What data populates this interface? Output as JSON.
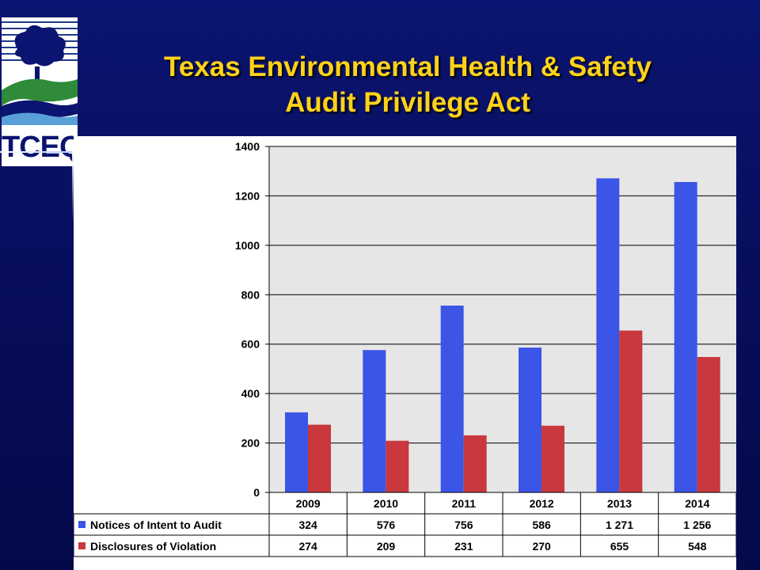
{
  "slide": {
    "title_line1": "Texas Environmental Health & Safety",
    "title_line2": "Audit Privilege Act",
    "logo_text": "TCEQ"
  },
  "colors": {
    "background": "#0b1470",
    "title": "#ffd21a",
    "series_1": "#3b55e6",
    "series_2": "#c8383c",
    "plot_area": "#e6e6e6"
  },
  "chart_data": {
    "type": "bar",
    "categories": [
      "2009",
      "2010",
      "2011",
      "2012",
      "2013",
      "2014"
    ],
    "series": [
      {
        "name": "Notices of Intent to Audit",
        "values": [
          324,
          576,
          756,
          586,
          1271,
          1256
        ],
        "labels": [
          "324",
          "576",
          "756",
          "586",
          "1 271",
          "1 256"
        ],
        "color": "#3b55e6"
      },
      {
        "name": "Disclosures of Violation",
        "values": [
          274,
          209,
          231,
          270,
          655,
          548
        ],
        "labels": [
          "274",
          "209",
          "231",
          "270",
          "655",
          "548"
        ],
        "color": "#c8383c"
      }
    ],
    "ylim": [
      0,
      1400
    ],
    "yticks": [
      "0",
      "200",
      "400",
      "600",
      "800",
      "1000",
      "1200",
      "1400"
    ],
    "legend": "data-table",
    "grid": true
  }
}
